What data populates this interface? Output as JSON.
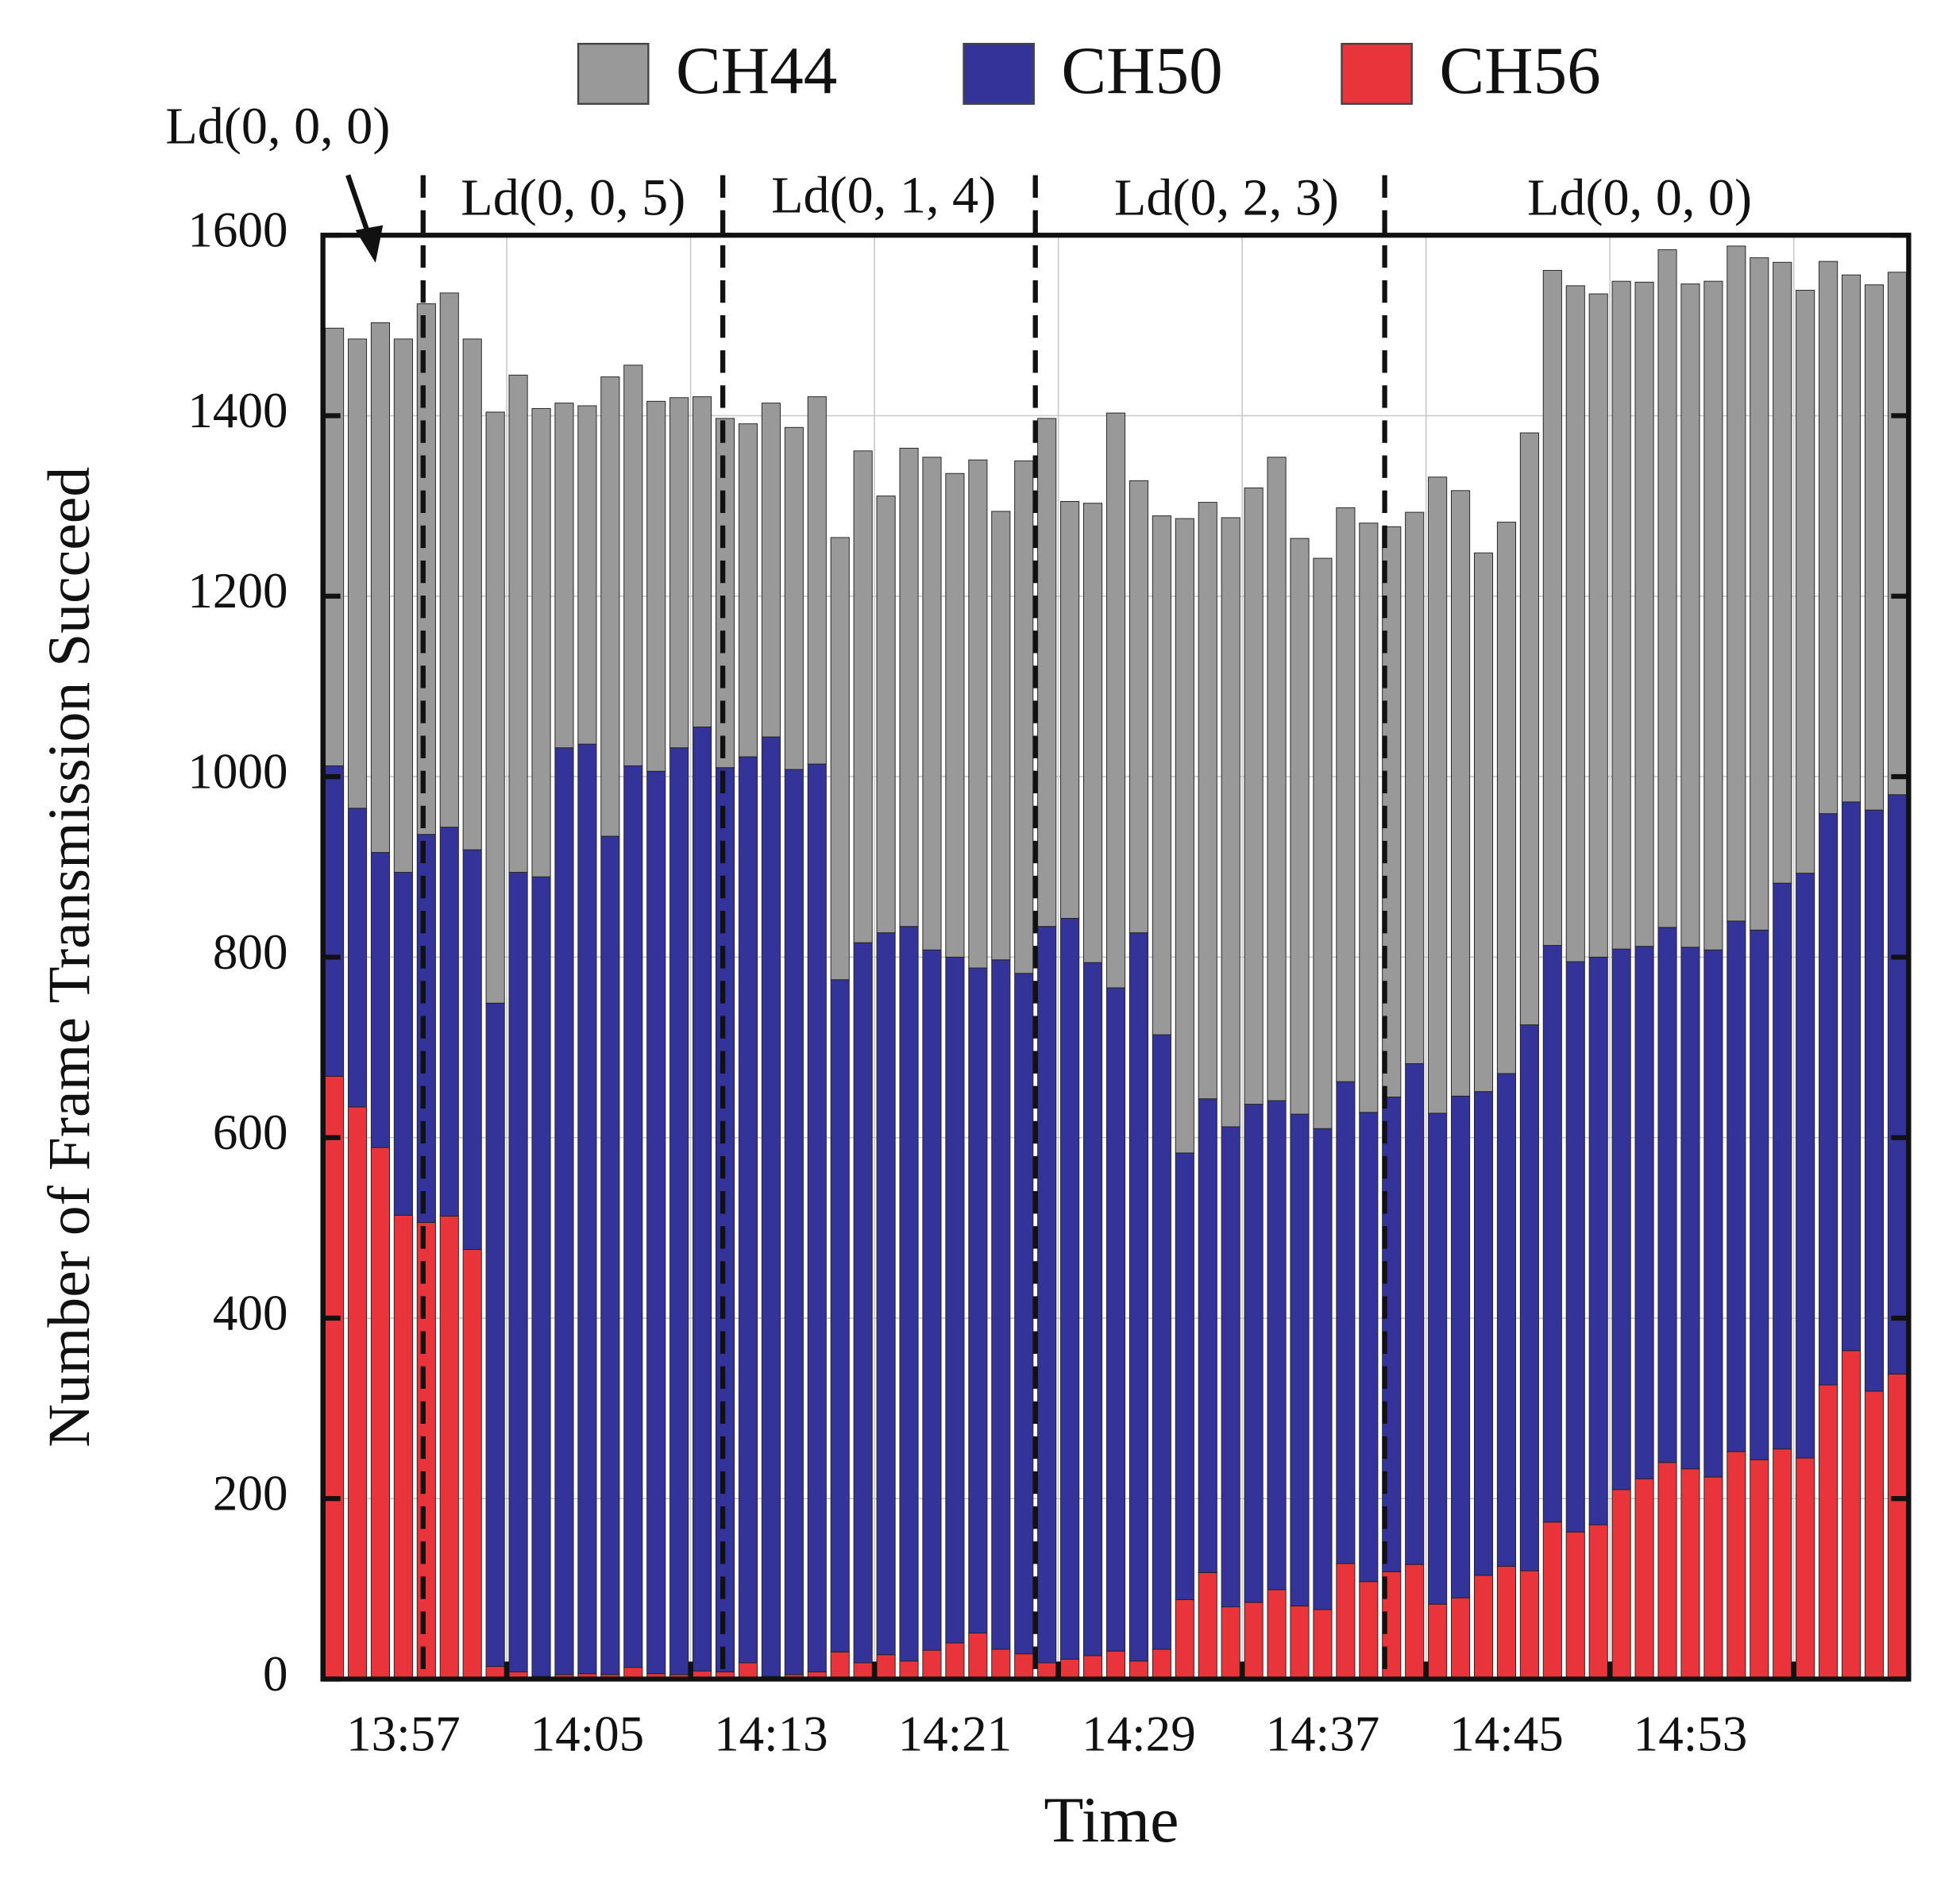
{
  "chart_data": {
    "type": "stacked_bar",
    "xlabel": "Time",
    "ylabel": "Number of Frame Transmission Succeed",
    "categories": [
      null,
      null,
      null,
      "13:57",
      null,
      null,
      null,
      null,
      null,
      null,
      null,
      "14:05",
      null,
      null,
      null,
      null,
      null,
      null,
      null,
      "14:13",
      null,
      null,
      null,
      null,
      null,
      null,
      null,
      "14:21",
      null,
      null,
      null,
      null,
      null,
      null,
      null,
      "14:29",
      null,
      null,
      null,
      null,
      null,
      null,
      null,
      "14:37",
      null,
      null,
      null,
      null,
      null,
      null,
      null,
      "14:45",
      null,
      null,
      null,
      null,
      null,
      null,
      null,
      "14:53",
      null,
      null,
      null,
      null,
      null,
      null,
      null,
      null,
      null
    ],
    "series": [
      {
        "name": "CH56",
        "color": "#e8343a",
        "values": [
          668,
          634,
          589,
          514,
          506,
          513,
          476,
          14,
          8,
          3,
          5,
          6,
          5,
          13,
          6,
          5,
          9,
          8,
          18,
          3,
          5,
          8,
          30,
          18,
          27,
          20,
          32,
          40,
          51,
          33,
          28,
          18,
          22,
          26,
          31,
          20,
          33,
          88,
          118,
          80,
          85,
          99,
          81,
          77,
          128,
          108,
          119,
          127,
          83,
          90,
          115,
          125,
          120,
          174,
          163,
          171,
          210,
          222,
          240,
          233,
          224,
          252,
          243,
          255,
          245,
          326,
          364,
          319,
          338
        ]
      },
      {
        "name": "CH50",
        "color": "#333399",
        "values": [
          344,
          331,
          327,
          380,
          430,
          431,
          443,
          735,
          886,
          886,
          1027,
          1030,
          929,
          999,
          1000,
          1027,
          1046,
          1002,
          1004,
          1041,
          1003,
          1006,
          745,
          798,
          800,
          814,
          776,
          760,
          737,
          764,
          754,
          816,
          821,
          768,
          735,
          807,
          681,
          495,
          525,
          532,
          552,
          542,
          545,
          533,
          534,
          520,
          526,
          555,
          544,
          556,
          536,
          546,
          605,
          639,
          632,
          629,
          599,
          590,
          593,
          578,
          584,
          588,
          587,
          627,
          648,
          633,
          608,
          644,
          642
        ]
      },
      {
        "name": "CH44",
        "color": "#999999",
        "values": [
          485,
          520,
          587,
          591,
          588,
          592,
          566,
          655,
          551,
          519,
          382,
          375,
          509,
          444,
          410,
          388,
          366,
          387,
          369,
          370,
          379,
          407,
          490,
          545,
          484,
          530,
          546,
          536,
          563,
          497,
          568,
          563,
          462,
          509,
          637,
          501,
          575,
          703,
          661,
          675,
          683,
          713,
          638,
          632,
          636,
          653,
          632,
          611,
          705,
          671,
          597,
          611,
          656,
          748,
          749,
          735,
          740,
          736,
          751,
          735,
          741,
          748,
          745,
          688,
          646,
          612,
          584,
          582,
          579
        ]
      }
    ],
    "legend_order": [
      "CH44",
      "CH50",
      "CH56"
    ],
    "annotations": [
      "Ld(0, 0, 0)",
      "Ld(0, 0, 5)",
      "Ld(0, 1, 4)",
      "Ld(0, 2, 3)",
      "Ld(0, 0, 0)"
    ],
    "ylim": [
      0,
      1600
    ],
    "yticks": [
      0,
      200,
      400,
      600,
      800,
      1000,
      1200,
      1400,
      1600
    ],
    "grid": true
  }
}
